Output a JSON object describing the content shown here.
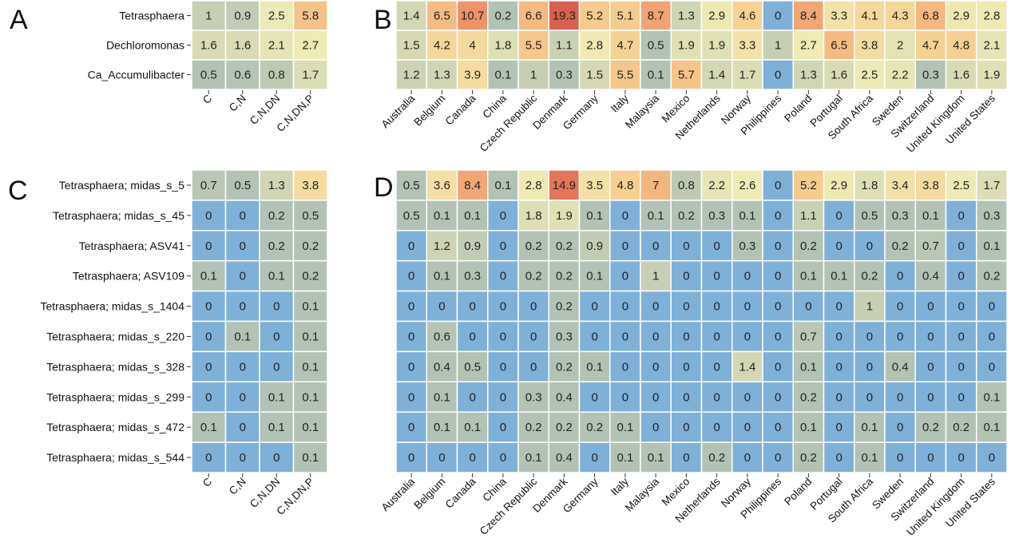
{
  "chart_data": [
    {
      "type": "heatmap",
      "panel": "A",
      "rows": [
        "Tetrasphaera",
        "Dechloromonas",
        "Ca_Accumulibacter"
      ],
      "columns": [
        "C",
        "C,N",
        "C,N,DN",
        "C,N,DN,P"
      ],
      "values": [
        [
          1,
          0.9,
          2.5,
          5.8
        ],
        [
          1.6,
          1.6,
          2.1,
          2.7
        ],
        [
          0.5,
          0.6,
          0.8,
          1.7
        ]
      ]
    },
    {
      "type": "heatmap",
      "panel": "B",
      "rows": [
        "Tetrasphaera",
        "Dechloromonas",
        "Ca_Accumulibacter"
      ],
      "columns": [
        "Australia",
        "Belgium",
        "Canada",
        "China",
        "Czech Republic",
        "Denmark",
        "Germany",
        "Italy",
        "Malaysia",
        "Mexico",
        "Netherlands",
        "Norway",
        "Philippines",
        "Poland",
        "Portugal",
        "South Africa",
        "Sweden",
        "Switzerland",
        "United Kingdom",
        "United States"
      ],
      "values": [
        [
          1.4,
          6.5,
          10.7,
          0.2,
          6.6,
          19.3,
          5.2,
          5.1,
          8.7,
          1.3,
          2.9,
          4.6,
          0,
          8.4,
          3.3,
          4.1,
          4.3,
          6.8,
          2.9,
          2.8
        ],
        [
          1.5,
          4.2,
          4,
          1.8,
          5.5,
          1.1,
          2.8,
          4.7,
          0.5,
          1.9,
          1.9,
          3.3,
          1,
          2.7,
          6.5,
          3.8,
          2,
          4.7,
          4.8,
          2.1
        ],
        [
          1.2,
          1.3,
          3.9,
          0.1,
          1,
          0.3,
          1.5,
          5.5,
          0.1,
          5.7,
          1.4,
          1.7,
          0,
          1.3,
          1.6,
          2.5,
          2.2,
          0.3,
          1.6,
          1.9
        ]
      ]
    },
    {
      "type": "heatmap",
      "panel": "C",
      "rows": [
        "Tetrasphaera; midas_s_5",
        "Tetrasphaera; midas_s_45",
        "Tetrasphaera; ASV41",
        "Tetrasphaera; ASV109",
        "Tetrasphaera; midas_s_1404",
        "Tetrasphaera; midas_s_220",
        "Tetrasphaera; midas_s_328",
        "Tetrasphaera; midas_s_299",
        "Tetrasphaera; midas_s_472",
        "Tetrasphaera; midas_s_544"
      ],
      "columns": [
        "C",
        "C,N",
        "C,N,DN",
        "C,N,DN,P"
      ],
      "values": [
        [
          0.7,
          0.5,
          1.3,
          3.8
        ],
        [
          0,
          0,
          0.2,
          0.5
        ],
        [
          0,
          0,
          0.2,
          0.2
        ],
        [
          0.1,
          0,
          0.1,
          0.2
        ],
        [
          0,
          0,
          0,
          0.1
        ],
        [
          0,
          0.1,
          0,
          0.1
        ],
        [
          0,
          0,
          0,
          0.1
        ],
        [
          0,
          0,
          0.1,
          0.1
        ],
        [
          0.1,
          0,
          0.1,
          0.1
        ],
        [
          0,
          0,
          0,
          0.1
        ]
      ]
    },
    {
      "type": "heatmap",
      "panel": "D",
      "rows": [
        "Tetrasphaera; midas_s_5",
        "Tetrasphaera; midas_s_45",
        "Tetrasphaera; ASV41",
        "Tetrasphaera; ASV109",
        "Tetrasphaera; midas_s_1404",
        "Tetrasphaera; midas_s_220",
        "Tetrasphaera; midas_s_328",
        "Tetrasphaera; midas_s_299",
        "Tetrasphaera; midas_s_472",
        "Tetrasphaera; midas_s_544"
      ],
      "columns": [
        "Australia",
        "Belgium",
        "Canada",
        "China",
        "Czech Republic",
        "Denmark",
        "Germany",
        "Italy",
        "Malaysia",
        "Mexico",
        "Netherlands",
        "Norway",
        "Philippines",
        "Poland",
        "Portugal",
        "South Africa",
        "Sweden",
        "Switzerland",
        "United Kingdom",
        "United States"
      ],
      "values": [
        [
          0.5,
          3.6,
          8.4,
          0.1,
          2.8,
          14.9,
          3.5,
          4.8,
          7,
          0.8,
          2.2,
          2.6,
          0,
          5.2,
          2.9,
          1.8,
          3.4,
          3.8,
          2.5,
          1.7
        ],
        [
          0.5,
          0.1,
          0.1,
          0,
          1.8,
          1.9,
          0.1,
          0,
          0.1,
          0.2,
          0.3,
          0.1,
          0,
          1.1,
          0,
          0.5,
          0.3,
          0.1,
          0,
          0.3
        ],
        [
          0,
          1.2,
          0.9,
          0,
          0.2,
          0.2,
          0.9,
          0,
          0,
          0,
          0,
          0.3,
          0,
          0.2,
          0,
          0,
          0.2,
          0.7,
          0,
          0.1
        ],
        [
          0,
          0.1,
          0.3,
          0,
          0.2,
          0.2,
          0.1,
          0,
          1,
          0,
          0,
          0,
          0,
          0.1,
          0.1,
          0.2,
          0,
          0.4,
          0,
          0.2
        ],
        [
          0,
          0,
          0,
          0,
          0,
          0.2,
          0,
          0,
          0,
          0,
          0,
          0,
          0,
          0,
          0,
          1,
          0,
          0,
          0,
          0
        ],
        [
          0,
          0.6,
          0,
          0,
          0,
          0.3,
          0,
          0,
          0,
          0,
          0,
          0,
          0,
          0.7,
          0,
          0,
          0,
          0,
          0,
          0
        ],
        [
          0,
          0.4,
          0.5,
          0,
          0,
          0.2,
          0.1,
          0,
          0,
          0,
          0,
          1.4,
          0,
          0.1,
          0,
          0,
          0.4,
          0,
          0,
          0
        ],
        [
          0,
          0.1,
          0,
          0,
          0.3,
          0.4,
          0,
          0,
          0,
          0,
          0,
          0,
          0,
          0.2,
          0,
          0,
          0,
          0,
          0,
          0.1
        ],
        [
          0,
          0.1,
          0.1,
          0,
          0.2,
          0.2,
          0.2,
          0.1,
          0,
          0,
          0,
          0,
          0,
          0.1,
          0,
          0.1,
          0,
          0.2,
          0.2,
          0.1
        ],
        [
          0,
          0,
          0,
          0,
          0.1,
          0.4,
          0,
          0.1,
          0.1,
          0,
          0.2,
          0,
          0,
          0.2,
          0,
          0.1,
          0,
          0,
          0,
          0
        ]
      ]
    }
  ],
  "colors": {
    "scale": [
      "#7fb0d8",
      "#b2c2b4",
      "#d2d6b4",
      "#efecb6",
      "#f6d395",
      "#f3b07a",
      "#ea8662",
      "#d9604e"
    ],
    "grid": "#ffffff"
  }
}
